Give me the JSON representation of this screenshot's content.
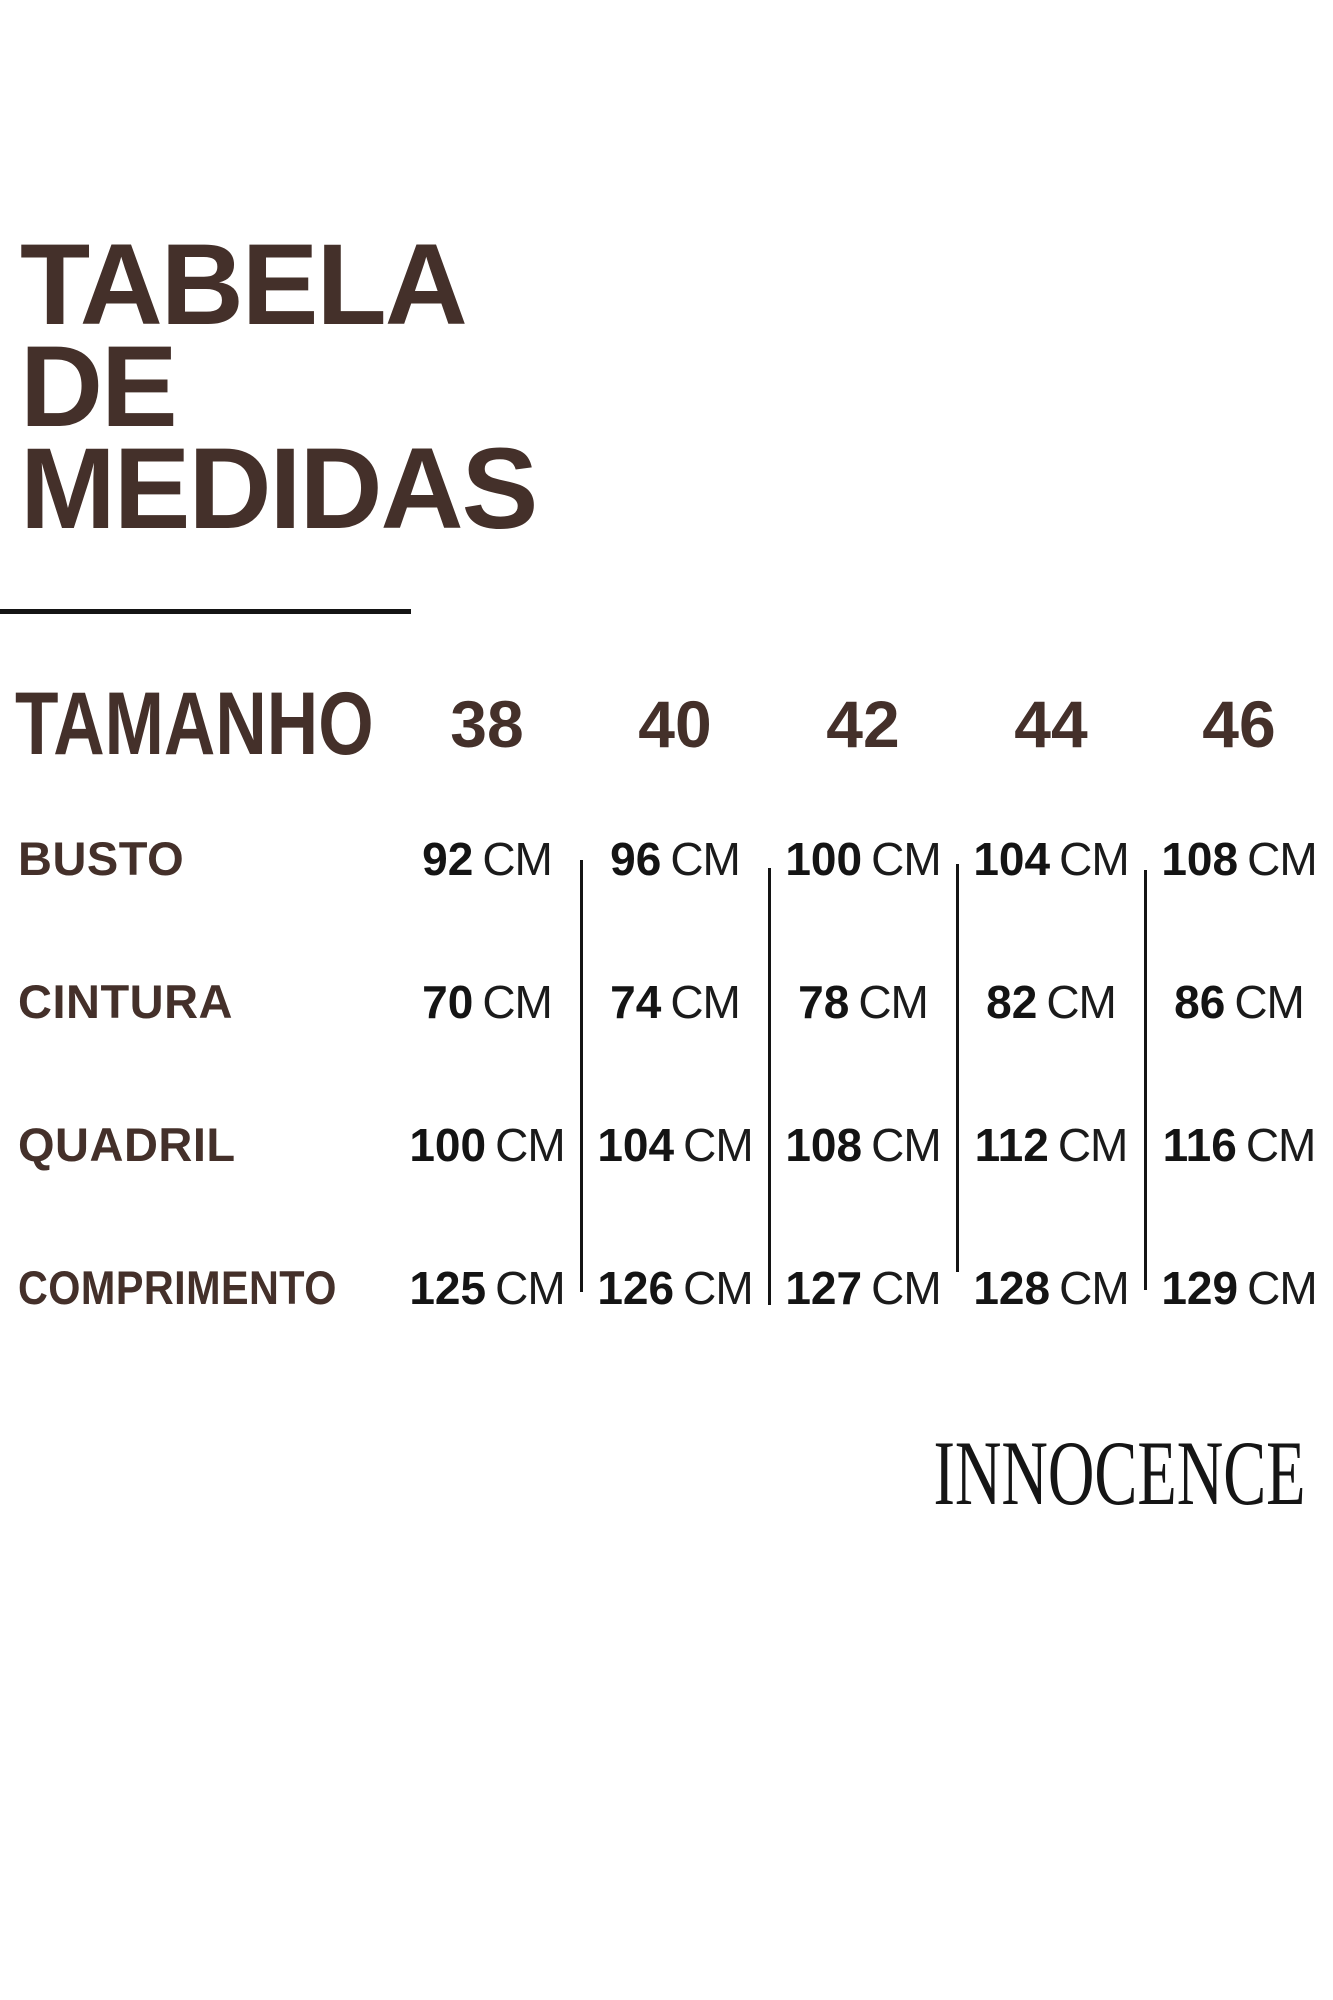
{
  "page": {
    "title_lines": [
      "TABELA",
      "DE",
      "MEDIDAS"
    ],
    "brand": "INNOCENCE"
  },
  "colors": {
    "brown": "#44302A",
    "ink": "#141414",
    "background": "#FFFFFF"
  },
  "chart_data": {
    "type": "table",
    "title": "TABELA DE MEDIDAS",
    "size_header": "TAMANHO",
    "sizes": [
      "38",
      "40",
      "42",
      "44",
      "46"
    ],
    "unit": "CM",
    "measurements": [
      {
        "label": "BUSTO",
        "values": [
          92,
          96,
          100,
          104,
          108
        ]
      },
      {
        "label": "CINTURA",
        "values": [
          70,
          74,
          78,
          82,
          86
        ]
      },
      {
        "label": "QUADRIL",
        "values": [
          100,
          104,
          108,
          112,
          116
        ]
      },
      {
        "label": "COMPRIMENTO",
        "values": [
          125,
          126,
          127,
          128,
          129
        ]
      }
    ]
  }
}
